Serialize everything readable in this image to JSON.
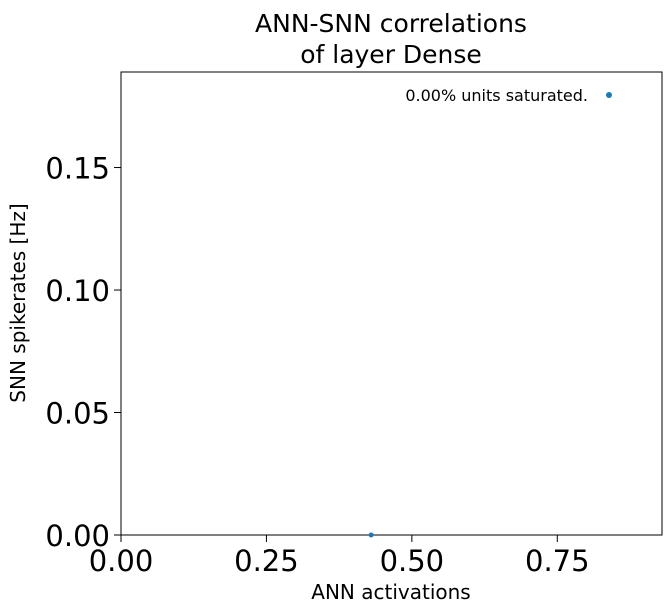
{
  "chart_data": {
    "type": "scatter",
    "title_lines": [
      "ANN-SNN correlations",
      "of layer Dense"
    ],
    "xlabel": "ANN activations",
    "ylabel": "SNN spikerates [Hz]",
    "xlim": [
      0.0,
      0.93
    ],
    "ylim": [
      0.0,
      0.189
    ],
    "xticks": [
      0.0,
      0.25,
      0.5,
      0.75
    ],
    "xtick_labels": [
      "0.00",
      "0.25",
      "0.50",
      "0.75"
    ],
    "yticks": [
      0.0,
      0.05,
      0.1,
      0.15
    ],
    "ytick_labels": [
      "0.00",
      "0.05",
      "0.10",
      "0.15"
    ],
    "grid": false,
    "series": [
      {
        "color": "#1f77b4",
        "points": [
          [
            0.43,
            0.0
          ]
        ]
      }
    ],
    "annotation": {
      "text": "0.00% units saturated.",
      "marker_color": "#1f77b4",
      "placement": "top-right"
    }
  }
}
